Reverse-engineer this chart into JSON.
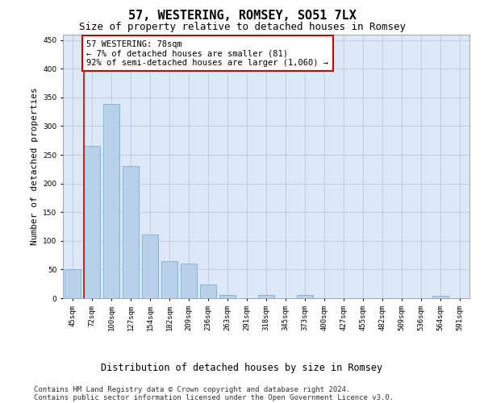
{
  "title": "57, WESTERING, ROMSEY, SO51 7LX",
  "subtitle": "Size of property relative to detached houses in Romsey",
  "xlabel": "Distribution of detached houses by size in Romsey",
  "ylabel": "Number of detached properties",
  "bar_color": "#b8d0e8",
  "bar_edge_color": "#7aafd4",
  "background_color": "#ffffff",
  "plot_bg_color": "#dce8f5",
  "grid_color": "#c0c8d8",
  "annotation_box_color": "#cc0000",
  "vline_color": "#cc0000",
  "categories": [
    "45sqm",
    "72sqm",
    "100sqm",
    "127sqm",
    "154sqm",
    "182sqm",
    "209sqm",
    "236sqm",
    "263sqm",
    "291sqm",
    "318sqm",
    "345sqm",
    "373sqm",
    "400sqm",
    "427sqm",
    "455sqm",
    "482sqm",
    "509sqm",
    "536sqm",
    "564sqm",
    "591sqm"
  ],
  "values": [
    50,
    265,
    338,
    231,
    111,
    64,
    60,
    24,
    6,
    0,
    5,
    0,
    5,
    0,
    0,
    0,
    0,
    0,
    0,
    4,
    0
  ],
  "ylim": [
    0,
    460
  ],
  "yticks": [
    0,
    50,
    100,
    150,
    200,
    250,
    300,
    350,
    400,
    450
  ],
  "vline_x_index": 1,
  "annotation_text": "57 WESTERING: 78sqm\n← 7% of detached houses are smaller (81)\n92% of semi-detached houses are larger (1,060) →",
  "footer_line1": "Contains HM Land Registry data © Crown copyright and database right 2024.",
  "footer_line2": "Contains public sector information licensed under the Open Government Licence v3.0.",
  "title_fontsize": 11,
  "subtitle_fontsize": 9,
  "ylabel_fontsize": 8,
  "xlabel_fontsize": 8.5,
  "tick_fontsize": 6.5,
  "annotation_fontsize": 7.5,
  "footer_fontsize": 6.5
}
